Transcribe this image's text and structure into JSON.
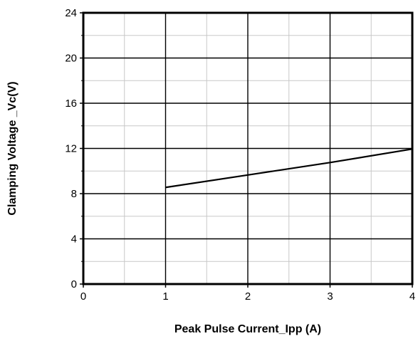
{
  "chart_data": {
    "type": "line",
    "title": "",
    "xlabel": "Peak Pulse Current_Ipp (A)",
    "ylabel": "Clamping Voltage _Vc(V)",
    "xlim": [
      0,
      4
    ],
    "ylim": [
      0,
      24
    ],
    "x_ticks": [
      "0",
      "1",
      "2",
      "3",
      "4"
    ],
    "y_ticks": [
      "0",
      "4",
      "8",
      "12",
      "16",
      "20",
      "24"
    ],
    "x_minor_step": 0.5,
    "y_minor_step": 2,
    "grid": true,
    "legend": "none",
    "series": [
      {
        "x": [
          1,
          2,
          3,
          4
        ],
        "y": [
          8.55,
          9.65,
          10.75,
          11.95
        ],
        "color": "#000000"
      }
    ]
  }
}
